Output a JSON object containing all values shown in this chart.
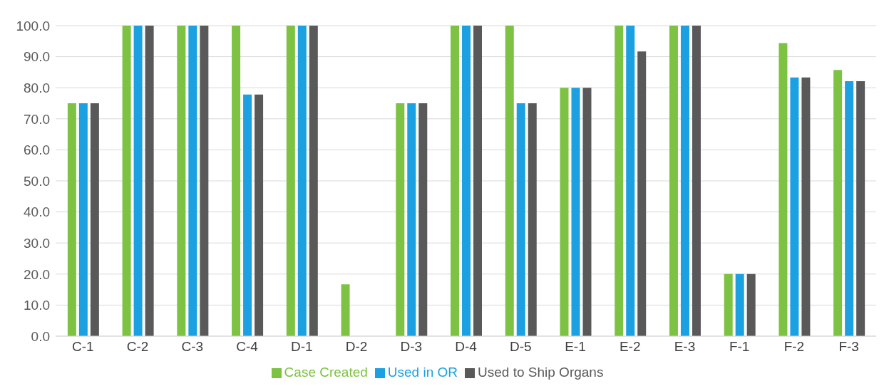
{
  "chart_data": {
    "type": "bar",
    "categories": [
      "C-1",
      "C-2",
      "C-3",
      "C-4",
      "D-1",
      "D-2",
      "D-3",
      "D-4",
      "D-5",
      "E-1",
      "E-2",
      "E-3",
      "F-1",
      "F-2",
      "F-3"
    ],
    "series": [
      {
        "name": "Case Created",
        "color": "#7dc242",
        "values": [
          75,
          100,
          100,
          100,
          100,
          16.7,
          75,
          100,
          100,
          80,
          100,
          100,
          20,
          94.4,
          85.7
        ]
      },
      {
        "name": "Used in OR",
        "color": "#1ba1e2",
        "values": [
          75,
          100,
          100,
          77.8,
          100,
          0,
          75,
          100,
          75,
          80,
          100,
          100,
          20,
          83.3,
          82.1
        ]
      },
      {
        "name": "Used to Ship Organs",
        "color": "#595959",
        "values": [
          75,
          100,
          100,
          77.8,
          100,
          0,
          75,
          100,
          75,
          80,
          91.7,
          100,
          20,
          83.3,
          82.1
        ]
      }
    ],
    "ylim": [
      0,
      100
    ],
    "yticks": [
      {
        "value": 0,
        "label": "0.0"
      },
      {
        "value": 10,
        "label": "10.0"
      },
      {
        "value": 20,
        "label": "20.0"
      },
      {
        "value": 30,
        "label": "30.0"
      },
      {
        "value": 40,
        "label": "40.0"
      },
      {
        "value": 50,
        "label": "50.0"
      },
      {
        "value": 60,
        "label": "60.0"
      },
      {
        "value": 70,
        "label": "70.0"
      },
      {
        "value": 80,
        "label": "80.0"
      },
      {
        "value": 90,
        "label": "90.0"
      },
      {
        "value": 100,
        "label": "100.0"
      }
    ],
    "grid": "y",
    "legend": "bottom"
  }
}
